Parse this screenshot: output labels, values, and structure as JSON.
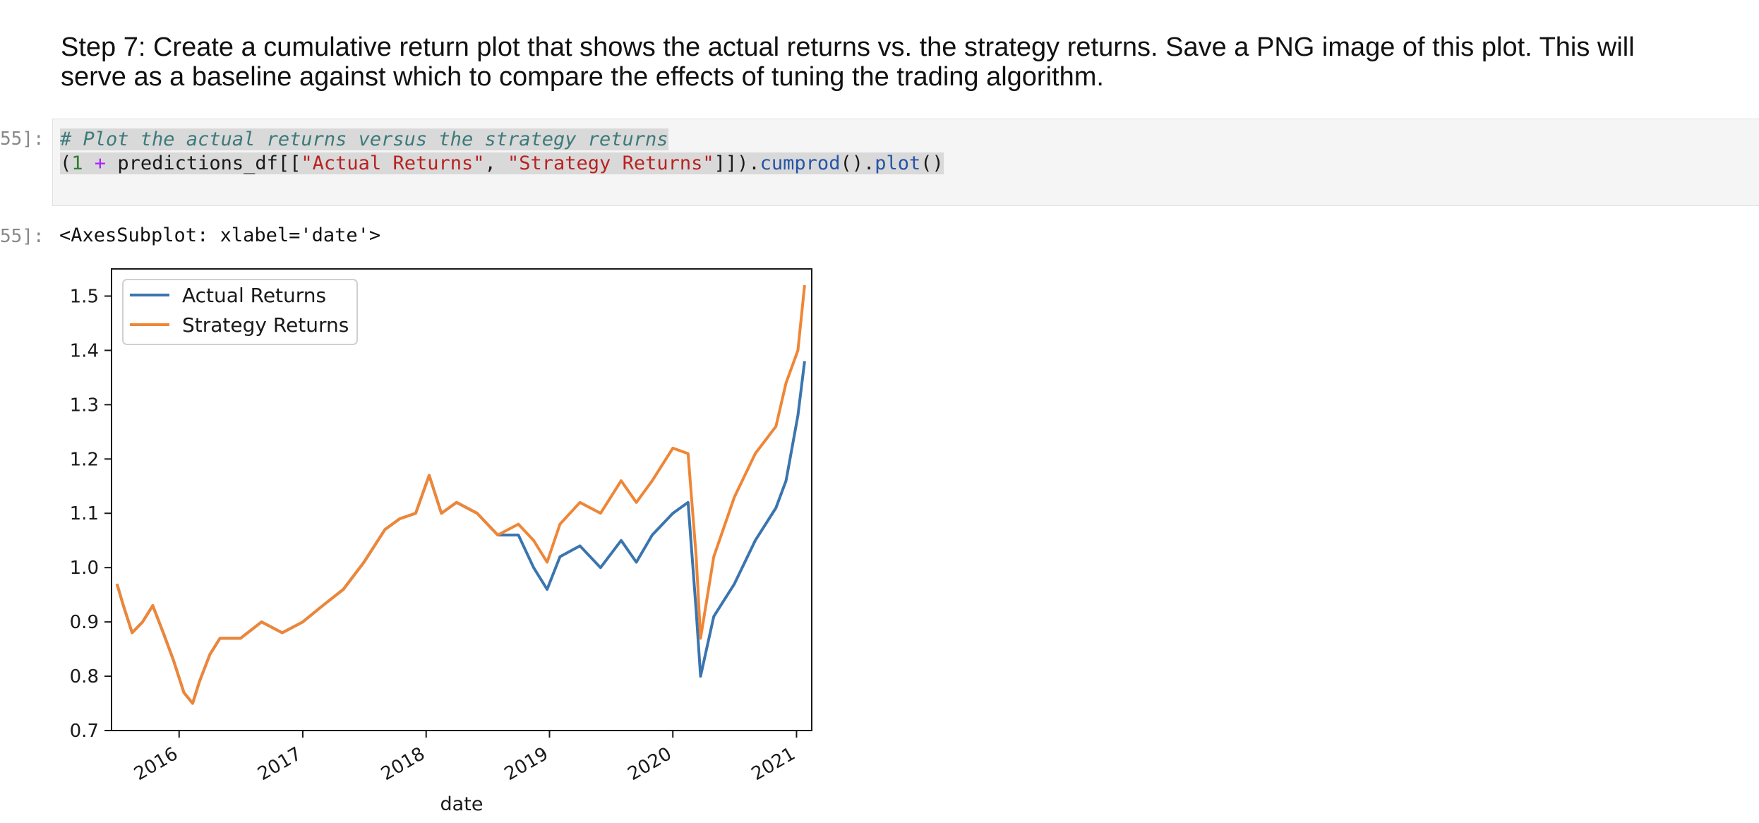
{
  "markdown": {
    "line1": "Step 7: Create a cumulative return plot that shows the actual returns vs. the strategy returns. Save a PNG image of this plot. This will",
    "line2": "serve as a baseline against which to compare the effects of tuning the trading algorithm."
  },
  "code_cell": {
    "prompt": "55]:",
    "comment": "# Plot the actual returns versus the strategy returns",
    "tok_open": "(",
    "tok_one": "1",
    "tok_plus": " + ",
    "tok_df": "predictions_df[[",
    "tok_s1": "\"Actual Returns\"",
    "tok_comma": ", ",
    "tok_s2": "\"Strategy Returns\"",
    "tok_close": "]]).",
    "tok_cumprod": "cumprod",
    "tok_paren1": "().",
    "tok_plot": "plot",
    "tok_paren2": "()"
  },
  "output_cell": {
    "prompt": "55]:",
    "text": "<AxesSubplot: xlabel='date'>"
  },
  "colors": {
    "actual": "#3b75af",
    "strategy": "#ef8636"
  },
  "chart_data": {
    "type": "line",
    "xlabel": "date",
    "ylabel": "",
    "ylim": [
      0.7,
      1.55
    ],
    "xlim": [
      "2015-06-15",
      "2021-02-15"
    ],
    "yticks": [
      "0.7",
      "0.8",
      "0.9",
      "1.0",
      "1.1",
      "1.2",
      "1.3",
      "1.4",
      "1.5"
    ],
    "xticks": [
      "2016",
      "2017",
      "2018",
      "2019",
      "2020",
      "2021"
    ],
    "legend": "top-left",
    "grid": false,
    "series": [
      {
        "name": "Actual Returns",
        "color": "#3b75af",
        "points": [
          [
            "2015-07-01",
            0.97
          ],
          [
            "2015-07-20",
            0.93
          ],
          [
            "2015-08-15",
            0.88
          ],
          [
            "2015-09-15",
            0.9
          ],
          [
            "2015-10-15",
            0.93
          ],
          [
            "2015-11-15",
            0.88
          ],
          [
            "2015-12-15",
            0.83
          ],
          [
            "2016-01-15",
            0.77
          ],
          [
            "2016-02-10",
            0.75
          ],
          [
            "2016-03-01",
            0.79
          ],
          [
            "2016-04-01",
            0.84
          ],
          [
            "2016-05-01",
            0.87
          ],
          [
            "2016-07-01",
            0.87
          ],
          [
            "2016-09-01",
            0.9
          ],
          [
            "2016-11-01",
            0.88
          ],
          [
            "2017-01-01",
            0.9
          ],
          [
            "2017-03-01",
            0.93
          ],
          [
            "2017-05-01",
            0.96
          ],
          [
            "2017-07-01",
            1.01
          ],
          [
            "2017-09-01",
            1.07
          ],
          [
            "2017-10-15",
            1.09
          ],
          [
            "2017-12-01",
            1.1
          ],
          [
            "2018-01-10",
            1.17
          ],
          [
            "2018-02-15",
            1.1
          ],
          [
            "2018-04-01",
            1.12
          ],
          [
            "2018-06-01",
            1.1
          ],
          [
            "2018-08-01",
            1.06
          ],
          [
            "2018-10-01",
            1.06
          ],
          [
            "2018-11-15",
            1.0
          ],
          [
            "2018-12-25",
            0.96
          ],
          [
            "2019-02-01",
            1.02
          ],
          [
            "2019-04-01",
            1.04
          ],
          [
            "2019-06-01",
            1.0
          ],
          [
            "2019-08-01",
            1.05
          ],
          [
            "2019-09-15",
            1.01
          ],
          [
            "2019-11-01",
            1.06
          ],
          [
            "2020-01-01",
            1.1
          ],
          [
            "2020-02-15",
            1.12
          ],
          [
            "2020-03-10",
            0.92
          ],
          [
            "2020-03-23",
            0.8
          ],
          [
            "2020-05-01",
            0.91
          ],
          [
            "2020-07-01",
            0.97
          ],
          [
            "2020-09-01",
            1.05
          ],
          [
            "2020-11-01",
            1.11
          ],
          [
            "2020-12-01",
            1.16
          ],
          [
            "2021-01-05",
            1.28
          ],
          [
            "2021-01-25",
            1.38
          ]
        ]
      },
      {
        "name": "Strategy Returns",
        "color": "#ef8636",
        "points": [
          [
            "2015-07-01",
            0.97
          ],
          [
            "2015-07-20",
            0.93
          ],
          [
            "2015-08-15",
            0.88
          ],
          [
            "2015-09-15",
            0.9
          ],
          [
            "2015-10-15",
            0.93
          ],
          [
            "2015-11-15",
            0.88
          ],
          [
            "2015-12-15",
            0.83
          ],
          [
            "2016-01-15",
            0.77
          ],
          [
            "2016-02-10",
            0.75
          ],
          [
            "2016-03-01",
            0.79
          ],
          [
            "2016-04-01",
            0.84
          ],
          [
            "2016-05-01",
            0.87
          ],
          [
            "2016-07-01",
            0.87
          ],
          [
            "2016-09-01",
            0.9
          ],
          [
            "2016-11-01",
            0.88
          ],
          [
            "2017-01-01",
            0.9
          ],
          [
            "2017-03-01",
            0.93
          ],
          [
            "2017-05-01",
            0.96
          ],
          [
            "2017-07-01",
            1.01
          ],
          [
            "2017-09-01",
            1.07
          ],
          [
            "2017-10-15",
            1.09
          ],
          [
            "2017-12-01",
            1.1
          ],
          [
            "2018-01-10",
            1.17
          ],
          [
            "2018-02-15",
            1.1
          ],
          [
            "2018-04-01",
            1.12
          ],
          [
            "2018-06-01",
            1.1
          ],
          [
            "2018-08-01",
            1.06
          ],
          [
            "2018-10-01",
            1.08
          ],
          [
            "2018-11-15",
            1.05
          ],
          [
            "2018-12-25",
            1.01
          ],
          [
            "2019-02-01",
            1.08
          ],
          [
            "2019-04-01",
            1.12
          ],
          [
            "2019-06-01",
            1.1
          ],
          [
            "2019-08-01",
            1.16
          ],
          [
            "2019-09-15",
            1.12
          ],
          [
            "2019-11-01",
            1.16
          ],
          [
            "2020-01-01",
            1.22
          ],
          [
            "2020-02-15",
            1.21
          ],
          [
            "2020-03-10",
            1.02
          ],
          [
            "2020-03-23",
            0.87
          ],
          [
            "2020-05-01",
            1.02
          ],
          [
            "2020-07-01",
            1.13
          ],
          [
            "2020-09-01",
            1.21
          ],
          [
            "2020-11-01",
            1.26
          ],
          [
            "2020-12-01",
            1.34
          ],
          [
            "2021-01-05",
            1.4
          ],
          [
            "2021-01-25",
            1.52
          ]
        ]
      }
    ]
  }
}
